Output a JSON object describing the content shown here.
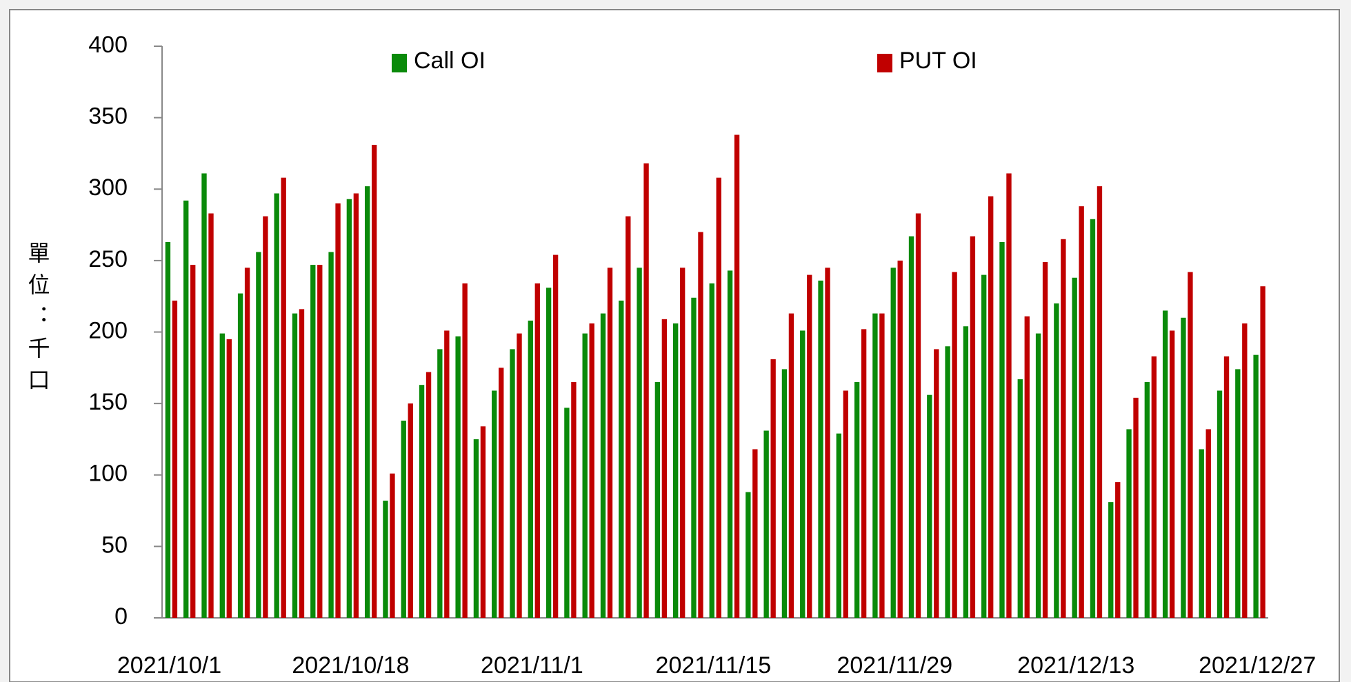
{
  "chart_data": {
    "type": "bar",
    "categories": [
      "2021/10/1",
      null,
      null,
      null,
      null,
      null,
      null,
      null,
      null,
      null,
      "2021/10/18",
      null,
      null,
      null,
      null,
      null,
      null,
      null,
      null,
      null,
      "2021/11/1",
      null,
      null,
      null,
      null,
      null,
      null,
      null,
      null,
      null,
      "2021/11/15",
      null,
      null,
      null,
      null,
      null,
      null,
      null,
      null,
      null,
      "2021/11/29",
      null,
      null,
      null,
      null,
      null,
      null,
      null,
      null,
      null,
      "2021/12/13",
      null,
      null,
      null,
      null,
      null,
      null,
      null,
      null,
      null,
      "2021/12/27"
    ],
    "series": [
      {
        "name": "Call OI",
        "color": "#0a8a0a",
        "values": [
          263,
          292,
          311,
          199,
          227,
          256,
          297,
          213,
          247,
          256,
          293,
          302,
          82,
          138,
          163,
          188,
          197,
          125,
          159,
          188,
          208,
          231,
          147,
          199,
          213,
          222,
          245,
          165,
          206,
          224,
          234,
          243,
          88,
          131,
          174,
          201,
          236,
          129,
          165,
          213,
          245,
          267,
          156,
          190,
          204,
          240,
          263,
          167,
          199,
          220,
          238,
          279,
          81,
          132,
          165,
          215,
          210,
          118,
          159,
          174,
          184
        ]
      },
      {
        "name": "PUT OI",
        "color": "#c00000",
        "values": [
          222,
          247,
          283,
          195,
          245,
          281,
          308,
          216,
          247,
          290,
          297,
          331,
          101,
          150,
          172,
          201,
          234,
          134,
          175,
          199,
          234,
          254,
          165,
          206,
          245,
          281,
          318,
          209,
          245,
          270,
          308,
          338,
          118,
          181,
          213,
          240,
          245,
          159,
          202,
          213,
          250,
          283,
          188,
          242,
          267,
          295,
          311,
          211,
          249,
          265,
          288,
          302,
          95,
          154,
          183,
          201,
          242,
          132,
          183,
          206,
          232
        ]
      }
    ],
    "y_label": "單位：千口",
    "ylim": [
      0,
      400
    ],
    "yticks": [
      0,
      50,
      100,
      150,
      200,
      250,
      300,
      350,
      400
    ]
  }
}
